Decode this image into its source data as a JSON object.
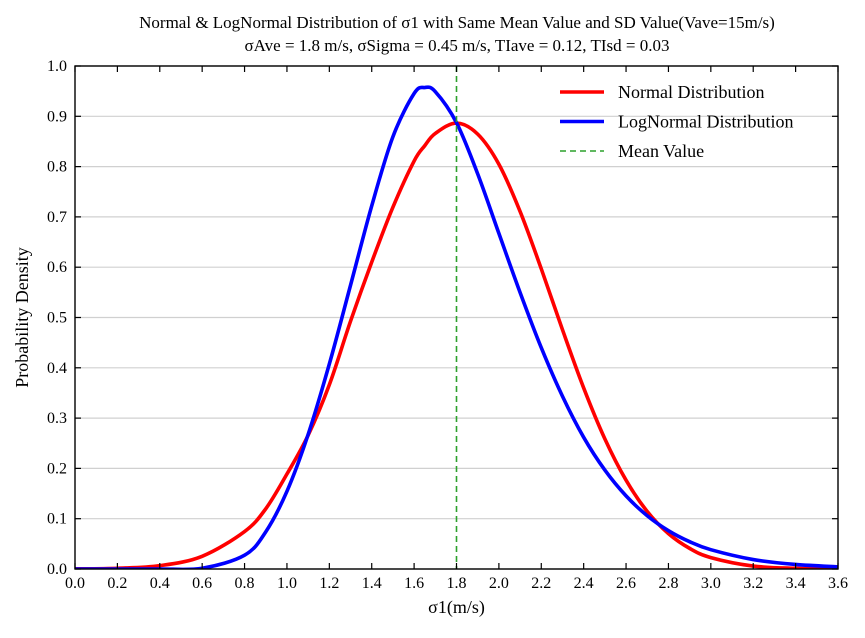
{
  "chart_data": {
    "type": "line",
    "title": "Normal & LogNormal Distribution of σ1 with Same Mean Value and SD Value(Vave=15m/s)",
    "subtitle": "σAve = 1.8 m/s, σSigma = 0.45 m/s, TIave = 0.12, TIsd = 0.03",
    "xlabel": "σ1(m/s)",
    "ylabel": "Probability Density",
    "xlim": [
      0.0,
      3.6
    ],
    "ylim": [
      0.0,
      1.0
    ],
    "xticks": [
      "0.0",
      "0.2",
      "0.4",
      "0.6",
      "0.8",
      "1.0",
      "1.2",
      "1.4",
      "1.6",
      "1.8",
      "2.0",
      "2.2",
      "2.4",
      "2.6",
      "2.8",
      "3.0",
      "3.2",
      "3.4",
      "3.6"
    ],
    "yticks": [
      "0.0",
      "0.1",
      "0.2",
      "0.3",
      "0.4",
      "0.5",
      "0.6",
      "0.7",
      "0.8",
      "0.9",
      "1.0"
    ],
    "grid": "horizontal",
    "legend_position": "top-right",
    "x": [
      0.0,
      0.2,
      0.4,
      0.6,
      0.8,
      0.9,
      1.0,
      1.1,
      1.2,
      1.3,
      1.4,
      1.5,
      1.6,
      1.65,
      1.7,
      1.8,
      1.9,
      2.0,
      2.1,
      2.2,
      2.3,
      2.4,
      2.5,
      2.6,
      2.7,
      2.8,
      2.9,
      3.0,
      3.2,
      3.4,
      3.6
    ],
    "series": [
      {
        "name": "Normal Distribution",
        "color": "#ff0000",
        "style": "solid",
        "values": [
          0.0003,
          0.0015,
          0.0066,
          0.0253,
          0.0745,
          0.1197,
          0.1888,
          0.2659,
          0.3663,
          0.4926,
          0.6101,
          0.7193,
          0.8111,
          0.8415,
          0.8659,
          0.8866,
          0.8646,
          0.8047,
          0.7109,
          0.5968,
          0.4757,
          0.36,
          0.2587,
          0.1765,
          0.1143,
          0.0703,
          0.041,
          0.0227,
          0.0059,
          0.0013,
          0.0003
        ]
      },
      {
        "name": "LogNormal Distribution",
        "color": "#0000ff",
        "style": "solid",
        "values": [
          0.0,
          0.0,
          0.0,
          0.0015,
          0.0275,
          0.0739,
          0.1545,
          0.2676,
          0.4075,
          0.5641,
          0.7219,
          0.8594,
          0.9453,
          0.9572,
          0.949,
          0.8873,
          0.7855,
          0.6672,
          0.5497,
          0.4399,
          0.3435,
          0.2618,
          0.1966,
          0.1453,
          0.1059,
          0.0762,
          0.0543,
          0.0384,
          0.0188,
          0.009,
          0.0043
        ]
      },
      {
        "name": "Mean Value",
        "color": "#2ca02c",
        "style": "dashed",
        "x_value": 1.8
      }
    ]
  }
}
